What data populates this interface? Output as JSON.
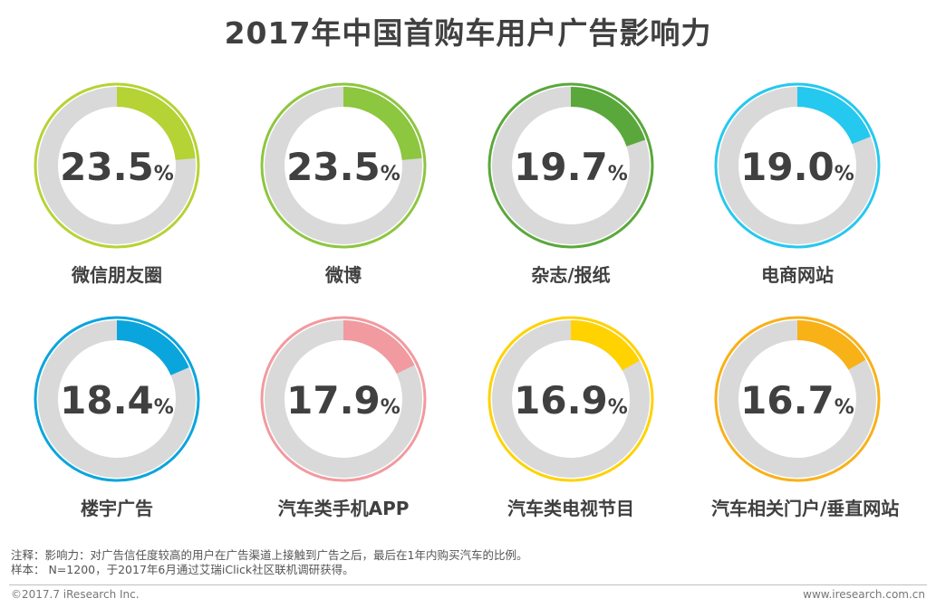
{
  "title": "2017年中国首购车用户广告影响力",
  "chart_data": {
    "type": "donut",
    "title": "2017年中国首购车用户广告影响力",
    "unit": "%",
    "items": [
      {
        "label": "微信朋友圈",
        "value": 23.5,
        "value_text": "23.5",
        "color": "#b5d334"
      },
      {
        "label": "微博",
        "value": 23.5,
        "value_text": "23.5",
        "color": "#8dc63f"
      },
      {
        "label": "杂志/报纸",
        "value": 19.7,
        "value_text": "19.7",
        "color": "#5aa83b"
      },
      {
        "label": "电商网站",
        "value": 19.0,
        "value_text": "19.0",
        "color": "#25c8ef"
      },
      {
        "label": "楼宇广告",
        "value": 18.4,
        "value_text": "18.4",
        "color": "#0aa5dd"
      },
      {
        "label": "汽车类手机APP",
        "value": 17.9,
        "value_text": "17.9",
        "color": "#f19aa0"
      },
      {
        "label": "汽车类电视节目",
        "value": 16.9,
        "value_text": "16.9",
        "color": "#ffd200"
      },
      {
        "label": "汽车相关门户/垂直网站",
        "value": 16.7,
        "value_text": "16.7",
        "color": "#f8b117"
      }
    ]
  },
  "notes": {
    "line1": "注释：影响力：对广告信任度较高的用户在广告渠道上接触到广告之后，最后在1年内购买汽车的比例。",
    "line2": "样本： N=1200，于2017年6月通过艾瑞iClick社区联机调研获得。"
  },
  "footer": {
    "left": "©2017.7 iResearch Inc.",
    "right": "www.iresearch.com.cn"
  },
  "colors": {
    "track": "#d9d9d9",
    "text": "#404040"
  }
}
